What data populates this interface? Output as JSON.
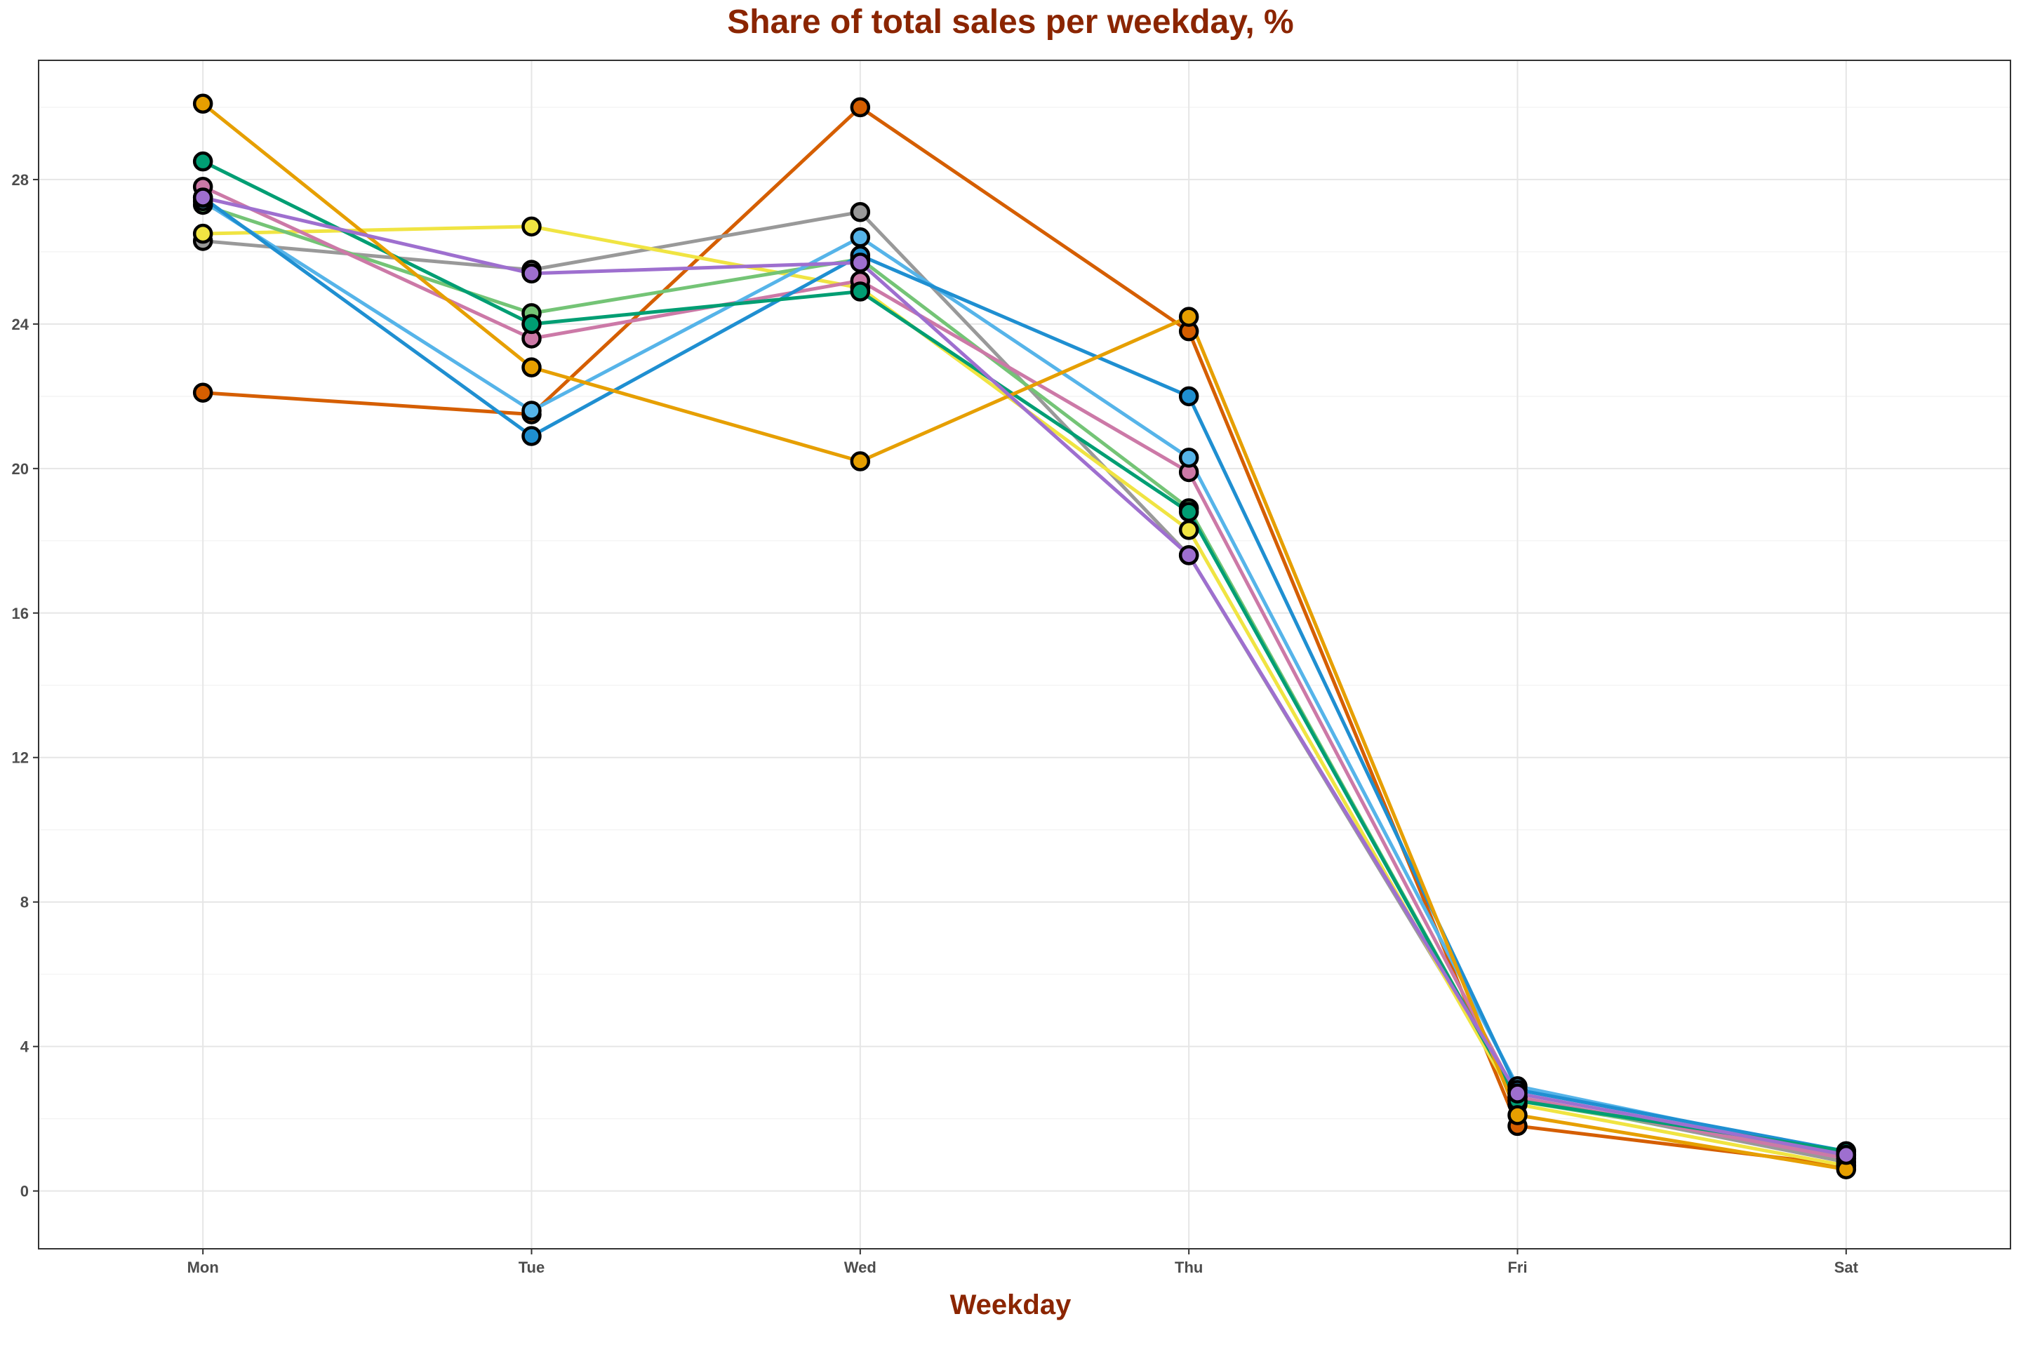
{
  "chart_data": {
    "type": "line",
    "title": "Share of total sales per weekday, %",
    "xlabel": "Weekday",
    "ylabel": "",
    "categories": [
      "Mon",
      "Tue",
      "Wed",
      "Thu",
      "Fri",
      "Sat"
    ],
    "ylim": [
      -1.6,
      31.3
    ],
    "yticks": [
      0,
      4,
      8,
      12,
      16,
      20,
      24,
      28
    ],
    "grid": true,
    "legend": "none",
    "series": [
      {
        "name": "vermillion",
        "color": "#D55E00",
        "values": [
          22.1,
          21.5,
          30.0,
          23.8,
          1.8,
          0.7
        ]
      },
      {
        "name": "grey",
        "color": "#999999",
        "values": [
          26.3,
          25.5,
          27.1,
          17.6,
          2.6,
          0.8
        ]
      },
      {
        "name": "yellow",
        "color": "#F0E442",
        "values": [
          26.5,
          26.7,
          25.0,
          18.3,
          2.4,
          0.7
        ]
      },
      {
        "name": "light-green",
        "color": "#74C476",
        "values": [
          27.3,
          24.3,
          25.8,
          18.9,
          2.5,
          1.0
        ]
      },
      {
        "name": "pink",
        "color": "#CC79A7",
        "values": [
          27.8,
          23.6,
          25.2,
          19.9,
          2.6,
          0.9
        ]
      },
      {
        "name": "sky-blue",
        "color": "#56B4E9",
        "values": [
          27.4,
          21.6,
          26.4,
          20.3,
          2.9,
          1.0
        ]
      },
      {
        "name": "blue",
        "color": "#1F8FD1",
        "values": [
          27.5,
          20.9,
          25.9,
          22.0,
          2.8,
          1.1
        ]
      },
      {
        "name": "green",
        "color": "#009E73",
        "values": [
          28.5,
          24.0,
          24.9,
          18.8,
          2.5,
          1.1
        ]
      },
      {
        "name": "orange",
        "color": "#E69F00",
        "values": [
          30.1,
          22.8,
          20.2,
          24.2,
          2.1,
          0.6
        ]
      },
      {
        "name": "purple",
        "color": "#9E6FCF",
        "values": [
          27.5,
          25.4,
          25.7,
          17.6,
          2.7,
          1.0
        ]
      }
    ]
  }
}
